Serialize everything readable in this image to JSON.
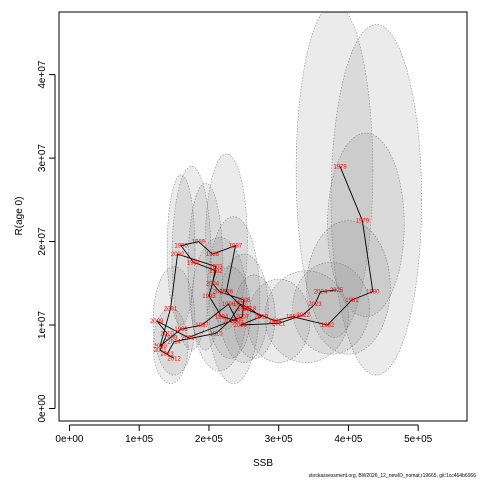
{
  "chart_data": {
    "type": "scatter",
    "title": "",
    "xlabel": "SSB",
    "ylabel": "R(age 0)",
    "xlim": [
      -15000,
      570000
    ],
    "ylim": [
      -1500000,
      47500000
    ],
    "xticks": [
      0,
      100000,
      200000,
      300000,
      400000,
      500000
    ],
    "xtick_labels": [
      "0e+00",
      "1e+05",
      "2e+05",
      "3e+05",
      "4e+05",
      "5e+05"
    ],
    "yticks": [
      0,
      10000000,
      20000000,
      30000000,
      40000000
    ],
    "ytick_labels": [
      "0e+00",
      "1e+07",
      "2e+07",
      "3e+07",
      "4e+07"
    ],
    "grid": false,
    "legend": "none",
    "colors": {
      "ellipse_fill": "#808080",
      "ellipse_stroke": "#555555",
      "path": "#000000",
      "point_label": "#ff0000",
      "plot_background": "#ffffff"
    },
    "uncertainty_ellipses": [
      {
        "cx": 380000,
        "cy": 28500000,
        "rx": 55000,
        "ry": 20000000
      },
      {
        "cx": 440000,
        "cy": 25000000,
        "rx": 65000,
        "ry": 21000000
      },
      {
        "cx": 425000,
        "cy": 22000000,
        "rx": 55000,
        "ry": 11000000
      },
      {
        "cx": 400000,
        "cy": 14500000,
        "rx": 60000,
        "ry": 8000000
      },
      {
        "cx": 375000,
        "cy": 12000000,
        "rx": 55000,
        "ry": 5500000
      },
      {
        "cx": 340000,
        "cy": 11000000,
        "rx": 60000,
        "ry": 5500000
      },
      {
        "cx": 300000,
        "cy": 10500000,
        "rx": 45000,
        "ry": 5000000
      },
      {
        "cx": 235000,
        "cy": 13000000,
        "rx": 38000,
        "ry": 10000000
      },
      {
        "cx": 225000,
        "cy": 20000000,
        "rx": 30000,
        "ry": 10500000
      },
      {
        "cx": 175000,
        "cy": 18000000,
        "rx": 28000,
        "ry": 11000000
      },
      {
        "cx": 160000,
        "cy": 19000000,
        "rx": 20000,
        "ry": 9000000
      },
      {
        "cx": 195000,
        "cy": 17000000,
        "rx": 25000,
        "ry": 10000000
      },
      {
        "cx": 215000,
        "cy": 12500000,
        "rx": 40000,
        "ry": 8000000
      },
      {
        "cx": 150000,
        "cy": 10500000,
        "rx": 30000,
        "ry": 6500000
      },
      {
        "cx": 145000,
        "cy": 7500000,
        "rx": 25000,
        "ry": 4500000
      },
      {
        "cx": 250000,
        "cy": 12000000,
        "rx": 35000,
        "ry": 6500000
      },
      {
        "cx": 230000,
        "cy": 11500000,
        "rx": 30000,
        "ry": 5500000
      },
      {
        "cx": 265000,
        "cy": 11000000,
        "rx": 30000,
        "ry": 5000000
      }
    ],
    "points": [
      {
        "year": "1978",
        "x": 388000,
        "y": 29000000
      },
      {
        "year": "1979",
        "x": 420000,
        "y": 22500000
      },
      {
        "year": "1980",
        "x": 435000,
        "y": 14000000
      },
      {
        "year": "1981",
        "x": 405000,
        "y": 13000000
      },
      {
        "year": "1982",
        "x": 370000,
        "y": 10000000
      },
      {
        "year": "2024",
        "x": 360000,
        "y": 14000000
      },
      {
        "year": "2025",
        "x": 383000,
        "y": 14200000
      },
      {
        "year": "2023",
        "x": 352000,
        "y": 12500000
      },
      {
        "year": "1983",
        "x": 320000,
        "y": 11000000
      },
      {
        "year": "1984",
        "x": 295000,
        "y": 10500000
      },
      {
        "year": "1985",
        "x": 250000,
        "y": 12000000
      },
      {
        "year": "1986",
        "x": 225000,
        "y": 14000000
      },
      {
        "year": "1987",
        "x": 238000,
        "y": 19500000
      },
      {
        "year": "1988",
        "x": 205000,
        "y": 18500000
      },
      {
        "year": "1989",
        "x": 185000,
        "y": 20000000
      },
      {
        "year": "1990",
        "x": 160000,
        "y": 19500000
      },
      {
        "year": "1991",
        "x": 178000,
        "y": 17500000
      },
      {
        "year": "1992",
        "x": 210000,
        "y": 16500000
      },
      {
        "year": "1993",
        "x": 200000,
        "y": 13500000
      },
      {
        "year": "1994",
        "x": 218000,
        "y": 11000000
      },
      {
        "year": "1995",
        "x": 240000,
        "y": 10500000
      },
      {
        "year": "1996",
        "x": 228000,
        "y": 12500000
      },
      {
        "year": "1997",
        "x": 190000,
        "y": 10000000
      },
      {
        "year": "1998",
        "x": 160000,
        "y": 9500000
      },
      {
        "year": "1999",
        "x": 145000,
        "y": 8500000
      },
      {
        "year": "2000",
        "x": 130000,
        "y": 7500000
      },
      {
        "year": "2001",
        "x": 145000,
        "y": 12000000
      },
      {
        "year": "2002",
        "x": 155000,
        "y": 18500000
      },
      {
        "year": "2003",
        "x": 210000,
        "y": 17000000
      },
      {
        "year": "2004",
        "x": 205000,
        "y": 15000000
      },
      {
        "year": "2005",
        "x": 215000,
        "y": 14000000
      },
      {
        "year": "2006",
        "x": 250000,
        "y": 13000000
      },
      {
        "year": "2007",
        "x": 248000,
        "y": 11000000
      },
      {
        "year": "2008",
        "x": 170000,
        "y": 8500000
      },
      {
        "year": "2009",
        "x": 125000,
        "y": 10500000
      },
      {
        "year": "2010",
        "x": 140000,
        "y": 9000000
      },
      {
        "year": "2011",
        "x": 130000,
        "y": 7000000
      },
      {
        "year": "2012",
        "x": 150000,
        "y": 6000000
      },
      {
        "year": "2013",
        "x": 140000,
        "y": 6500000
      },
      {
        "year": "2014",
        "x": 150000,
        "y": 8000000
      },
      {
        "year": "2015",
        "x": 210000,
        "y": 9000000
      },
      {
        "year": "2016",
        "x": 230000,
        "y": 10500000
      },
      {
        "year": "2017",
        "x": 245000,
        "y": 12500000
      },
      {
        "year": "2018",
        "x": 258000,
        "y": 12000000
      },
      {
        "year": "2019",
        "x": 275000,
        "y": 11000000
      },
      {
        "year": "2020",
        "x": 245000,
        "y": 10000000
      },
      {
        "year": "2021",
        "x": 300000,
        "y": 10200000
      },
      {
        "year": "2022",
        "x": 335000,
        "y": 11200000
      }
    ],
    "path_order": [
      "1978",
      "1979",
      "1980",
      "1981",
      "1982",
      "1983",
      "1984",
      "1985",
      "1986",
      "1987",
      "1988",
      "1989",
      "1990",
      "1991",
      "1992",
      "1993",
      "1994",
      "1995",
      "1996",
      "1997",
      "1998",
      "1999",
      "2000",
      "2001",
      "2002",
      "2003",
      "2004",
      "2005",
      "2006",
      "2007",
      "2008",
      "2009",
      "2010",
      "2011",
      "2012",
      "2013",
      "2014",
      "2015",
      "2016",
      "2017",
      "2018",
      "2019",
      "2020",
      "2021",
      "2022",
      "2023",
      "2024",
      "2025"
    ]
  },
  "footer_text": "stockassessment.org, BW2026_12_newID_nomat,r19665, git:1cc464b6066"
}
